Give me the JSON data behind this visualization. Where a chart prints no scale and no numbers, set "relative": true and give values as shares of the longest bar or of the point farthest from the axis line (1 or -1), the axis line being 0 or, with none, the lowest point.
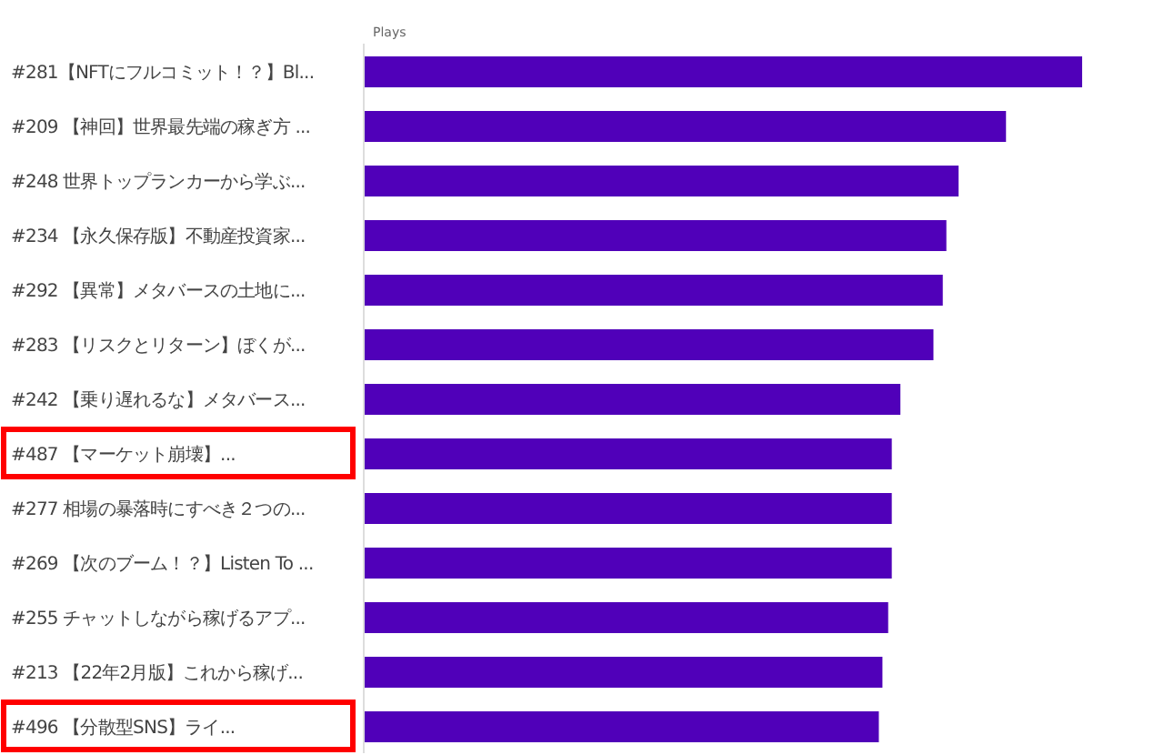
{
  "chart_data": {
    "type": "bar",
    "orientation": "horizontal",
    "relative": true,
    "xlabel": "Plays",
    "categories": [
      "#281【NFTにフルコミット！？】Bl...",
      "#209 【神回】世界最先端の稼ぎ方 ...",
      "#248 世界トップランカーから学ぶ...",
      "#234 【永久保存版】不動産投資家...",
      "#292 【異常】メタバースの土地に...",
      "#283 【リスクとリターン】ぼくが...",
      "#242 【乗り遅れるな】メタバース...",
      "#487 【マーケット崩壊】...",
      "#277 相場の暴落時にすべき２つの...",
      "#269 【次のブーム！？】Listen To ...",
      "#255 チャットしながら稼げるアプ...",
      "#213 【22年2月版】これから稼げ...",
      "#496 【分散型SNS】ライ..."
    ],
    "values": [
      1,
      0.894,
      0.828,
      0.811,
      0.806,
      0.793,
      0.747,
      0.735,
      0.735,
      0.735,
      0.73,
      0.722,
      0.717
    ],
    "color": "#5000b9"
  }
}
